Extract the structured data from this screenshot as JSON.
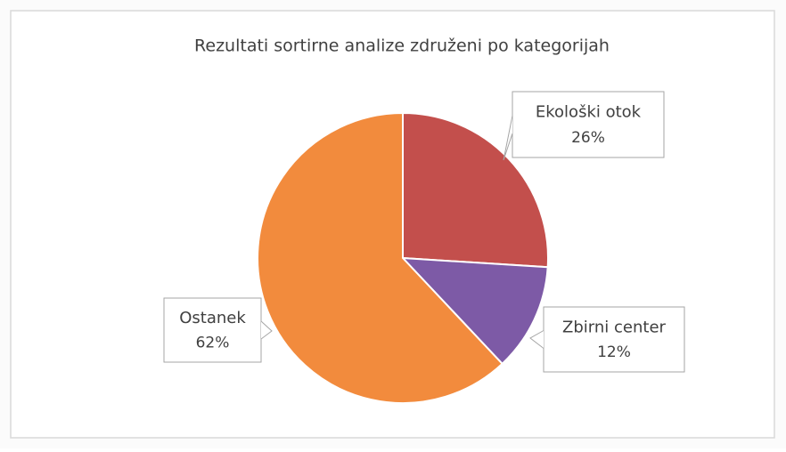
{
  "chart_data": {
    "type": "pie",
    "title": "Rezultati sortirne analize združeni po kategorijah",
    "categories": [
      "Ekološki otok",
      "Zbirni center",
      "Ostanek"
    ],
    "values": [
      26,
      12,
      62
    ],
    "value_labels": [
      "26%",
      "12%",
      "62%"
    ],
    "colors": [
      "#c34f4c",
      "#7d5aa6",
      "#f28b3d"
    ]
  }
}
